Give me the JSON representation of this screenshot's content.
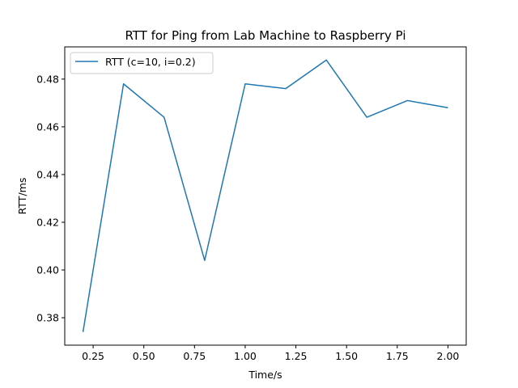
{
  "chart_data": {
    "type": "line",
    "title": "RTT for Ping from Lab Machine to Raspberry Pi",
    "xlabel": "Time/s",
    "ylabel": "RTT/ms",
    "xlim": [
      0.11,
      2.09
    ],
    "ylim": [
      0.3685,
      0.4935
    ],
    "xticks": [
      0.25,
      0.5,
      0.75,
      1.0,
      1.25,
      1.5,
      1.75,
      2.0
    ],
    "xtick_labels": [
      "0.25",
      "0.50",
      "0.75",
      "1.00",
      "1.25",
      "1.50",
      "1.75",
      "2.00"
    ],
    "yticks": [
      0.38,
      0.4,
      0.42,
      0.44,
      0.46,
      0.48
    ],
    "ytick_labels": [
      "0.38",
      "0.40",
      "0.42",
      "0.44",
      "0.46",
      "0.48"
    ],
    "grid": false,
    "legend_position": "top-left",
    "series": [
      {
        "name": "RTT (c=10, i=0.2)",
        "color": "#1f77b4",
        "x": [
          0.2,
          0.4,
          0.6,
          0.8,
          1.0,
          1.2,
          1.4,
          1.6,
          1.8,
          2.0
        ],
        "y": [
          0.374,
          0.478,
          0.464,
          0.404,
          0.478,
          0.476,
          0.488,
          0.464,
          0.471,
          0.468
        ]
      }
    ]
  }
}
